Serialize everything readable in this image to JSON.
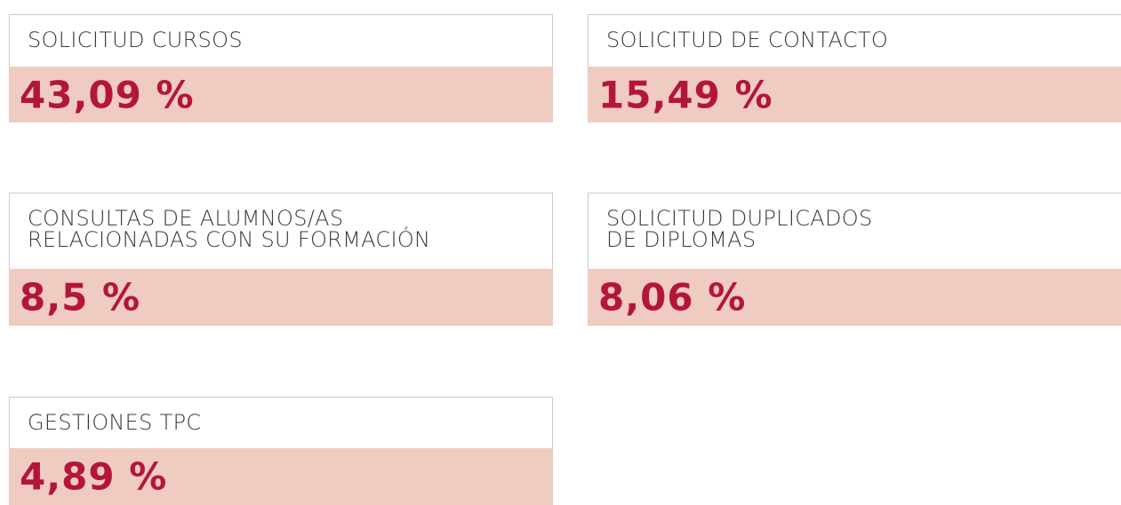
{
  "cards": [
    {
      "label": [
        "SOLICITUD CURSOS"
      ],
      "value": "43,09 %"
    },
    {
      "label": [
        "SOLICITUD DE CONTACTO"
      ],
      "value": "15,49 %"
    },
    {
      "label": [
        "CONSULTAS DE ALUMNOS/AS",
        "RELACIONADAS CON SU FORMACIÓN"
      ],
      "value": "8,5 %"
    },
    {
      "label": [
        "SOLICITUD DUPLICADOS",
        "DE DIPLOMAS"
      ],
      "value": "8,06 %"
    },
    {
      "label": [
        "GESTIONES TPC"
      ],
      "value": "4,89 %"
    }
  ]
}
